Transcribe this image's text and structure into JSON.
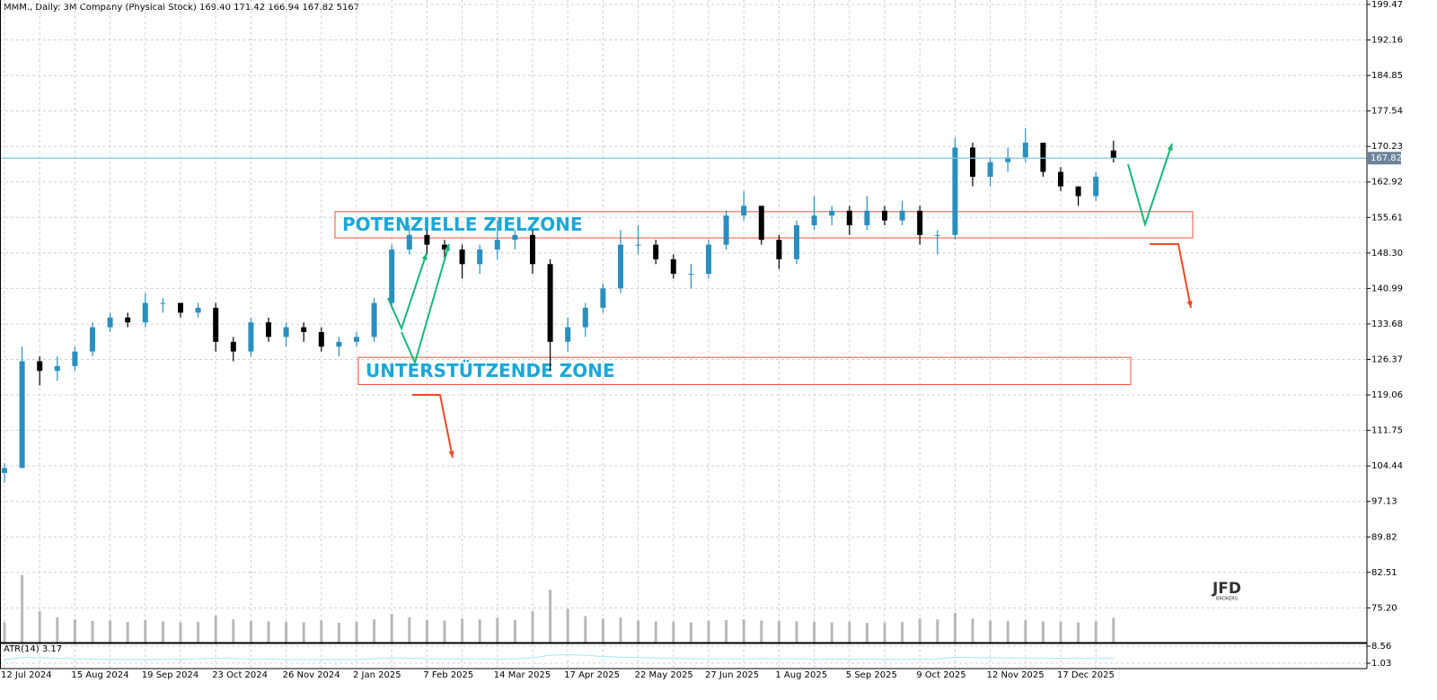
{
  "chart_data": {
    "type": "candlestick",
    "title": "MMM., Daily:  3M Company (Physical Stock)  169.40 171.42 166.94 167.82  5167",
    "categories": [
      "12 Jul 2024",
      null,
      null,
      null,
      "15 Aug 2024",
      null,
      null,
      null,
      "19 Sep 2024",
      null,
      null,
      null,
      "23 Oct 2024",
      null,
      null,
      null,
      "26 Nov 2024",
      null,
      null,
      null,
      "2 Jan 2025",
      null,
      null,
      null,
      "7 Feb 2025",
      null,
      null,
      null,
      "14 Mar 2025",
      null,
      null,
      null,
      "17 Apr 2025",
      null,
      null,
      null,
      "22 May 2025",
      null,
      null,
      null,
      "27 Jun 2025",
      null,
      null,
      null,
      "1 Aug 2025",
      null,
      null,
      null,
      "5 Sep 2025",
      null,
      null,
      null,
      "9 Oct 2025",
      null,
      null,
      null,
      "12 Nov 2025",
      null,
      null,
      null,
      "17 Dec 2025",
      null,
      null,
      null
    ],
    "open": [
      103,
      104,
      126,
      124,
      125,
      128,
      133,
      135,
      134,
      138,
      138,
      136,
      137,
      130,
      128,
      134,
      131,
      133,
      132,
      129,
      130,
      131,
      138,
      149,
      152,
      150,
      149,
      146,
      149,
      151,
      152,
      146,
      130,
      133,
      137,
      141,
      150,
      150,
      147,
      144,
      144,
      150,
      156,
      158,
      151,
      147,
      154,
      156,
      157,
      154,
      157,
      155,
      157,
      152,
      152,
      170,
      164,
      167,
      168,
      171,
      165,
      162,
      160,
      169.4
    ],
    "high": [
      105,
      129,
      127,
      127,
      129,
      134,
      136,
      136,
      140,
      139,
      138,
      138,
      138,
      131,
      135,
      135,
      134,
      134,
      133,
      131,
      132,
      139,
      150,
      154,
      153,
      151,
      150,
      150,
      155,
      153,
      153,
      147,
      135,
      138,
      142,
      153,
      154,
      151,
      148,
      146,
      151,
      157,
      161,
      158,
      152,
      155,
      160,
      158,
      158,
      160,
      158,
      159,
      158,
      153,
      172,
      171,
      168,
      170,
      174,
      171,
      166,
      162,
      165,
      171.42
    ],
    "low": [
      101,
      104,
      121,
      122,
      124,
      127,
      132,
      133,
      133,
      136,
      135,
      135,
      128,
      126,
      127,
      130,
      129,
      130,
      128,
      127,
      129,
      130,
      137,
      148,
      148,
      147,
      143,
      144,
      147,
      149,
      144,
      124,
      128,
      131,
      136,
      140,
      148,
      146,
      143,
      141,
      143,
      149,
      155,
      150,
      145,
      146,
      153,
      154,
      152,
      153,
      154,
      154,
      150,
      148,
      151,
      162,
      162,
      165,
      167,
      164,
      161,
      158,
      159,
      166.94
    ],
    "close": [
      104,
      126,
      124,
      125,
      128,
      133,
      135,
      134,
      138,
      138,
      136,
      137,
      130,
      128,
      134,
      131,
      133,
      132,
      129,
      130,
      131,
      138,
      149,
      152,
      150,
      149,
      146,
      149,
      151,
      152,
      146,
      130,
      133,
      137,
      141,
      150,
      150,
      147,
      144,
      144,
      150,
      156,
      158,
      151,
      147,
      154,
      156,
      157,
      154,
      157,
      155,
      157,
      152,
      152,
      170,
      164,
      167,
      168,
      171,
      165,
      162,
      160,
      164,
      167.82
    ],
    "volume": [
      4200,
      14000,
      6500,
      5200,
      4800,
      4500,
      4600,
      4300,
      4700,
      4400,
      4200,
      4300,
      5600,
      4800,
      4500,
      4400,
      4300,
      4200,
      4600,
      4100,
      4300,
      4800,
      6000,
      5200,
      4700,
      4600,
      5000,
      4800,
      5200,
      4700,
      6500,
      11000,
      7000,
      5500,
      5000,
      5200,
      4600,
      4400,
      4300,
      4200,
      4500,
      4700,
      4800,
      4600,
      4500,
      4400,
      4300,
      4200,
      4300,
      4100,
      4200,
      4300,
      5000,
      4800,
      6200,
      5000,
      4600,
      4500,
      4700,
      4400,
      4300,
      4200,
      4400,
      5167
    ],
    "up_color": "#2a8fbf",
    "down_color": "#000000",
    "volume_color": "#b8b8b8",
    "ylim": [
      68.06,
      200.39
    ],
    "yticks": [
      199.47,
      192.16,
      184.85,
      177.54,
      170.23,
      162.92,
      155.61,
      {
        "value": 148.3,
        "label": "148.30"
      },
      140.99,
      133.68,
      126.37,
      119.06,
      111.75,
      104.44,
      97.13,
      89.82,
      82.51,
      {
        "value": 75.2,
        "label": "75.20"
      }
    ],
    "grid": true,
    "last_price": 167.82,
    "last_price_color": "#7fc8de",
    "zones": [
      {
        "label": "POTENZIELLE ZIELZONE",
        "low": 151.4,
        "high": 156.8
      },
      {
        "label": "UNTERSTÜTZENDE ZONE",
        "low": 121.2,
        "high": 126.8
      }
    ],
    "atr": {
      "label": "ATR(14) 3.17",
      "color": "#a8e6ee",
      "values": [
        2.6,
        3.6,
        3.4,
        3.2,
        3.0,
        2.8,
        2.7,
        2.6,
        2.6,
        2.7,
        2.8,
        3.0,
        3.2,
        3.1,
        2.9,
        2.8,
        2.7,
        2.6,
        2.6,
        2.6,
        2.7,
        3.0,
        3.3,
        3.2,
        3.0,
        2.9,
        3.0,
        2.9,
        2.9,
        2.9,
        3.4,
        4.6,
        4.8,
        4.5,
        4.0,
        3.7,
        3.5,
        3.3,
        3.1,
        3.0,
        3.0,
        3.0,
        3.0,
        3.1,
        3.0,
        3.0,
        2.9,
        2.8,
        2.8,
        2.8,
        2.7,
        2.7,
        2.8,
        2.9,
        3.6,
        3.5,
        3.4,
        3.3,
        3.3,
        3.2,
        3.2,
        3.1,
        3.1,
        3.17
      ],
      "ylim": [
        -1.35,
        9.75
      ],
      "yticks": [
        8.56,
        1.03
      ]
    },
    "logo": {
      "title": "JFD",
      "subtitle": "BROKERS"
    }
  }
}
